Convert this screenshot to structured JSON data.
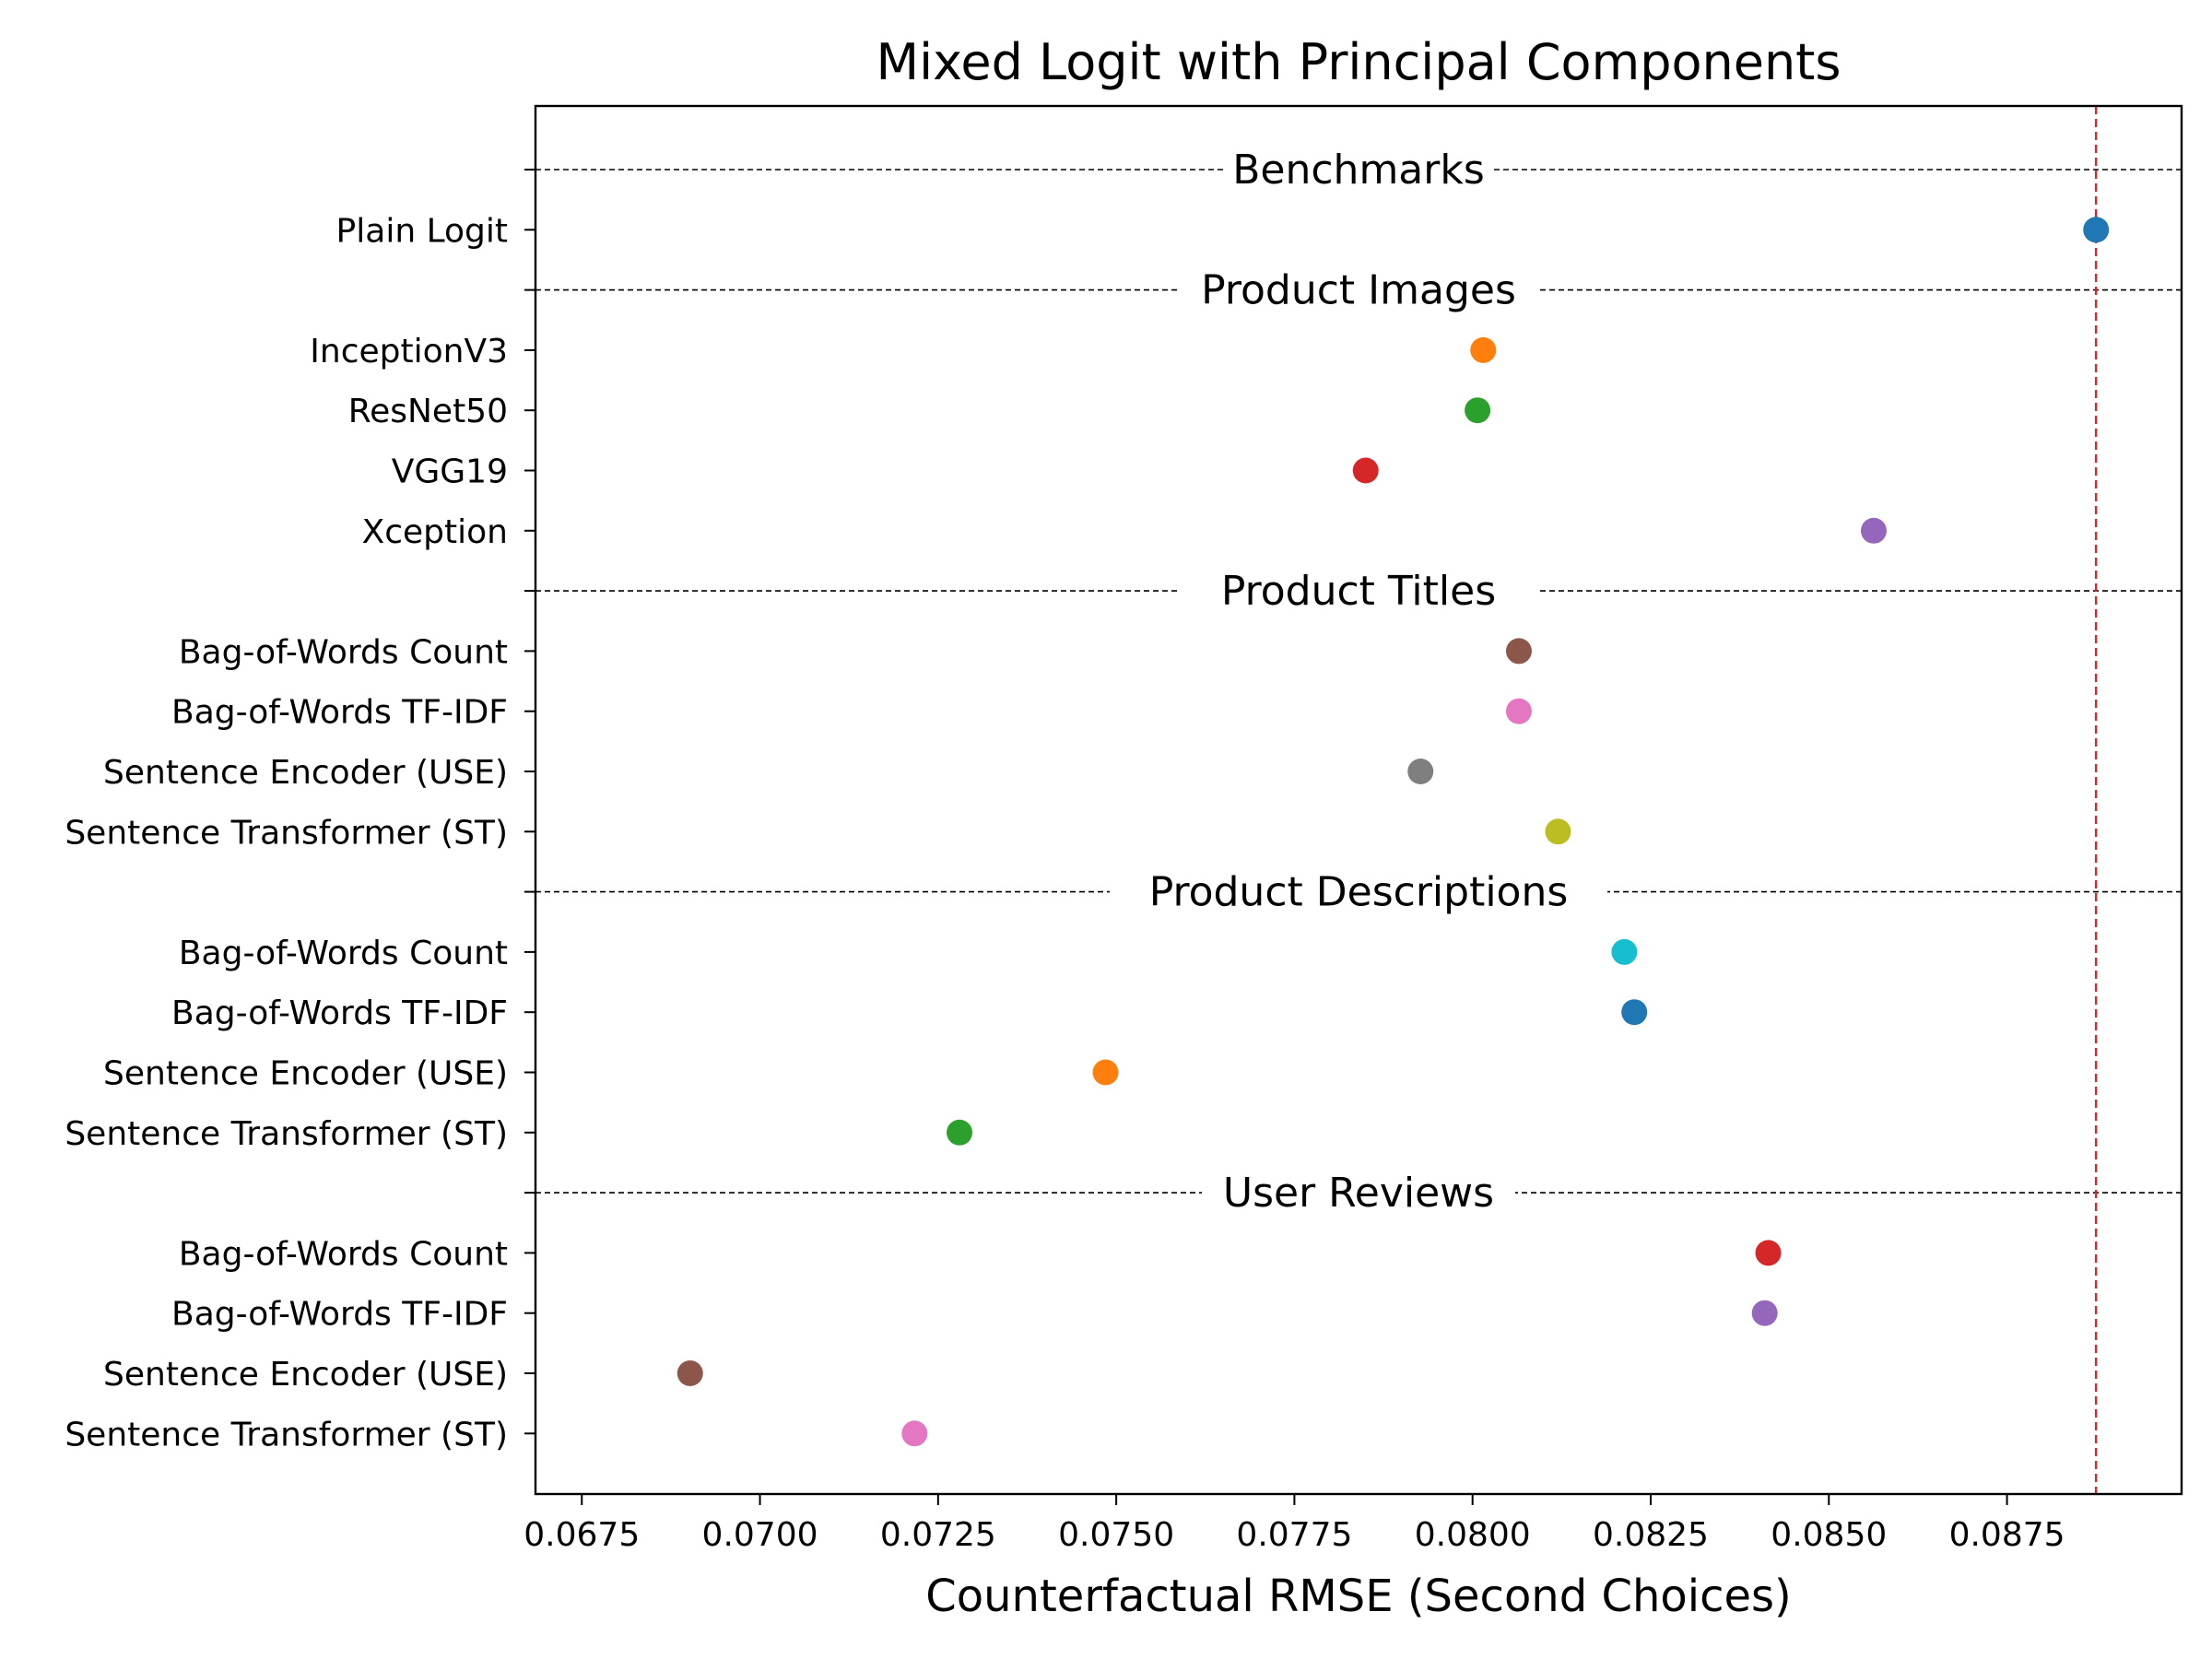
{
  "chart_data": {
    "type": "scatter",
    "title": "Mixed Logit with Principal Components",
    "xlabel": "Counterfactual RMSE (Second Choices)",
    "ylabel": "",
    "xlim": [
      0.06685,
      0.08995
    ],
    "xticks": [
      "0.0675",
      "0.0700",
      "0.0725",
      "0.0750",
      "0.0775",
      "0.0800",
      "0.0825",
      "0.0850",
      "0.0875"
    ],
    "xtick_values": [
      0.0675,
      0.07,
      0.0725,
      0.075,
      0.0775,
      0.08,
      0.0825,
      0.085,
      0.0875
    ],
    "reference_line": {
      "x": 0.08875,
      "color": "#d62728",
      "style": "dashed"
    },
    "grid": false,
    "sections": [
      {
        "name": "Benchmarks",
        "items": [
          {
            "label": "Plain Logit",
            "value": 0.08875,
            "color": "#1f77b4"
          }
        ]
      },
      {
        "name": "Product Images",
        "items": [
          {
            "label": "InceptionV3",
            "value": 0.08015,
            "color": "#ff7f0e"
          },
          {
            "label": "ResNet50",
            "value": 0.08007,
            "color": "#2ca02c"
          },
          {
            "label": "VGG19",
            "value": 0.0785,
            "color": "#d62728"
          },
          {
            "label": "Xception",
            "value": 0.08563,
            "color": "#9467bd"
          }
        ]
      },
      {
        "name": "Product Titles",
        "items": [
          {
            "label": "Bag-of-Words Count",
            "value": 0.08065,
            "color": "#8c564b"
          },
          {
            "label": "Bag-of-Words TF-IDF",
            "value": 0.08065,
            "color": "#e377c2"
          },
          {
            "label": "Sentence Encoder (USE)",
            "value": 0.07927,
            "color": "#7f7f7f"
          },
          {
            "label": "Sentence Transformer (ST)",
            "value": 0.0812,
            "color": "#bcbd22"
          }
        ]
      },
      {
        "name": "Product Descriptions",
        "items": [
          {
            "label": "Bag-of-Words Count",
            "value": 0.08213,
            "color": "#17becf"
          },
          {
            "label": "Bag-of-Words TF-IDF",
            "value": 0.08227,
            "color": "#1f77b4"
          },
          {
            "label": "Sentence Encoder (USE)",
            "value": 0.07485,
            "color": "#ff7f0e"
          },
          {
            "label": "Sentence Transformer (ST)",
            "value": 0.0728,
            "color": "#2ca02c"
          }
        ]
      },
      {
        "name": "User Reviews",
        "items": [
          {
            "label": "Bag-of-Words Count",
            "value": 0.08415,
            "color": "#d62728"
          },
          {
            "label": "Bag-of-Words TF-IDF",
            "value": 0.0841,
            "color": "#9467bd"
          },
          {
            "label": "Sentence Encoder (USE)",
            "value": 0.06902,
            "color": "#8c564b"
          },
          {
            "label": "Sentence Transformer (ST)",
            "value": 0.07217,
            "color": "#e377c2"
          }
        ]
      }
    ]
  }
}
